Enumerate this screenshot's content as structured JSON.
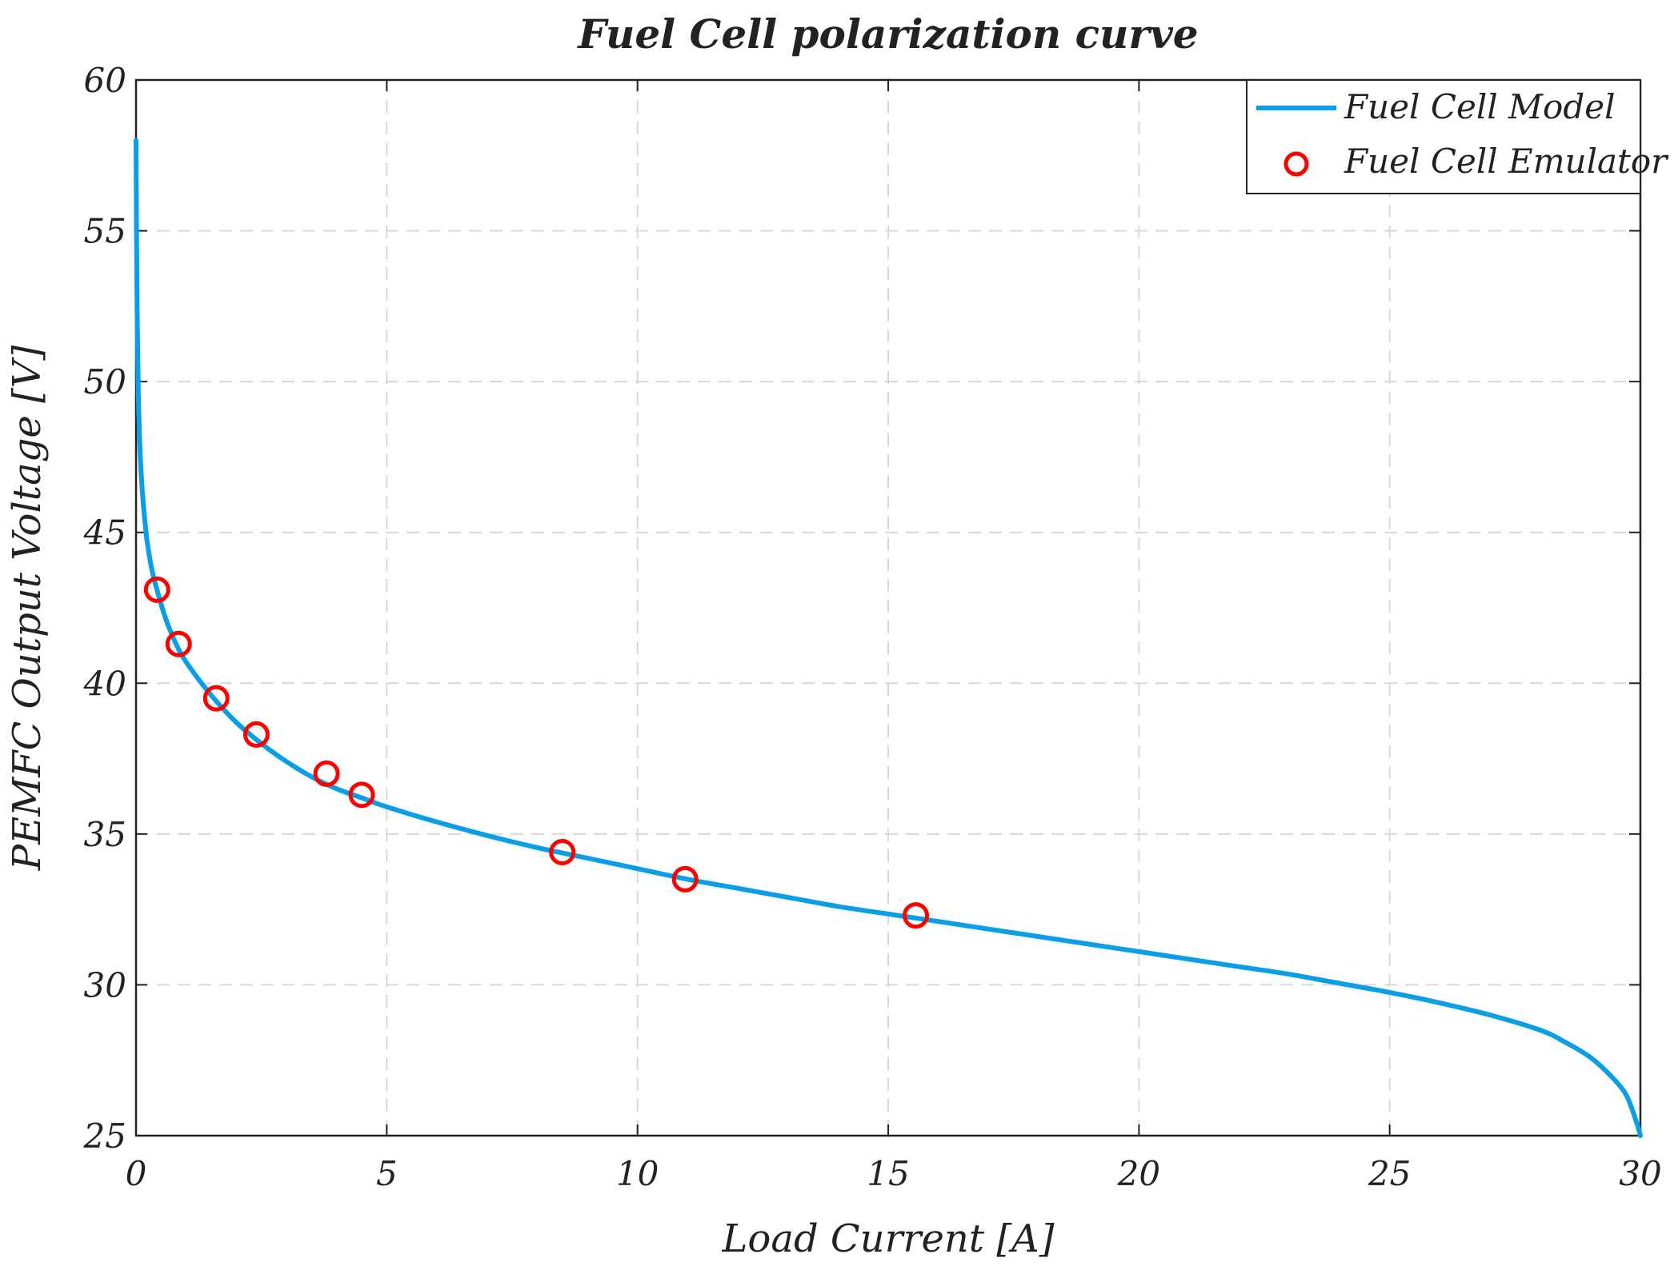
{
  "chart_data": {
    "type": "line",
    "title": "Fuel Cell polarization curve",
    "xlabel": "Load Current [A]",
    "ylabel": "PEMFC Output Voltage [V]",
    "xlim": [
      0,
      30
    ],
    "ylim": [
      25,
      60
    ],
    "x_ticks": [
      0,
      5,
      10,
      15,
      20,
      25,
      30
    ],
    "y_ticks": [
      25,
      30,
      35,
      40,
      45,
      50,
      55,
      60
    ],
    "x_tick_labels": [
      "0",
      "5",
      "10",
      "15",
      "20",
      "25",
      "30"
    ],
    "y_tick_labels": [
      "25",
      "30",
      "35",
      "40",
      "45",
      "50",
      "55",
      "60"
    ],
    "grid": true,
    "legend_position": "top-right",
    "series": [
      {
        "name": "Fuel Cell Model",
        "style": "line",
        "color": "#0a9ee6",
        "x": [
          0.0,
          0.02,
          0.05,
          0.1,
          0.2,
          0.3,
          0.4,
          0.6,
          0.8,
          1.0,
          1.5,
          2.0,
          2.5,
          3.0,
          3.5,
          4.0,
          4.5,
          5.0,
          6.0,
          7.0,
          8.0,
          9.0,
          10.0,
          11.0,
          12.0,
          13.0,
          14.0,
          15.0,
          16.0,
          17.0,
          18.0,
          19.0,
          20.0,
          21.0,
          22.0,
          23.0,
          24.0,
          25.0,
          26.0,
          27.0,
          28.0,
          28.5,
          29.0,
          29.4,
          29.7,
          29.85,
          29.95,
          30.0
        ],
        "values": [
          58.0,
          52.5,
          49.3,
          47.0,
          45.0,
          43.9,
          43.2,
          42.1,
          41.3,
          40.7,
          39.6,
          38.7,
          38.0,
          37.4,
          36.9,
          36.5,
          36.2,
          35.9,
          35.4,
          34.95,
          34.55,
          34.2,
          33.85,
          33.5,
          33.2,
          32.9,
          32.6,
          32.35,
          32.1,
          31.85,
          31.6,
          31.35,
          31.1,
          30.85,
          30.6,
          30.35,
          30.05,
          29.75,
          29.4,
          29.0,
          28.5,
          28.1,
          27.6,
          27.0,
          26.4,
          25.8,
          25.3,
          25.0
        ]
      },
      {
        "name": "Fuel Cell Emulator",
        "style": "markers",
        "marker": "circle",
        "color": "#ff0000",
        "x": [
          0.42,
          0.85,
          1.6,
          2.4,
          3.8,
          4.5,
          8.5,
          10.95,
          15.55
        ],
        "values": [
          43.1,
          41.3,
          39.5,
          38.3,
          37.0,
          36.3,
          34.4,
          33.5,
          32.3
        ]
      }
    ]
  }
}
